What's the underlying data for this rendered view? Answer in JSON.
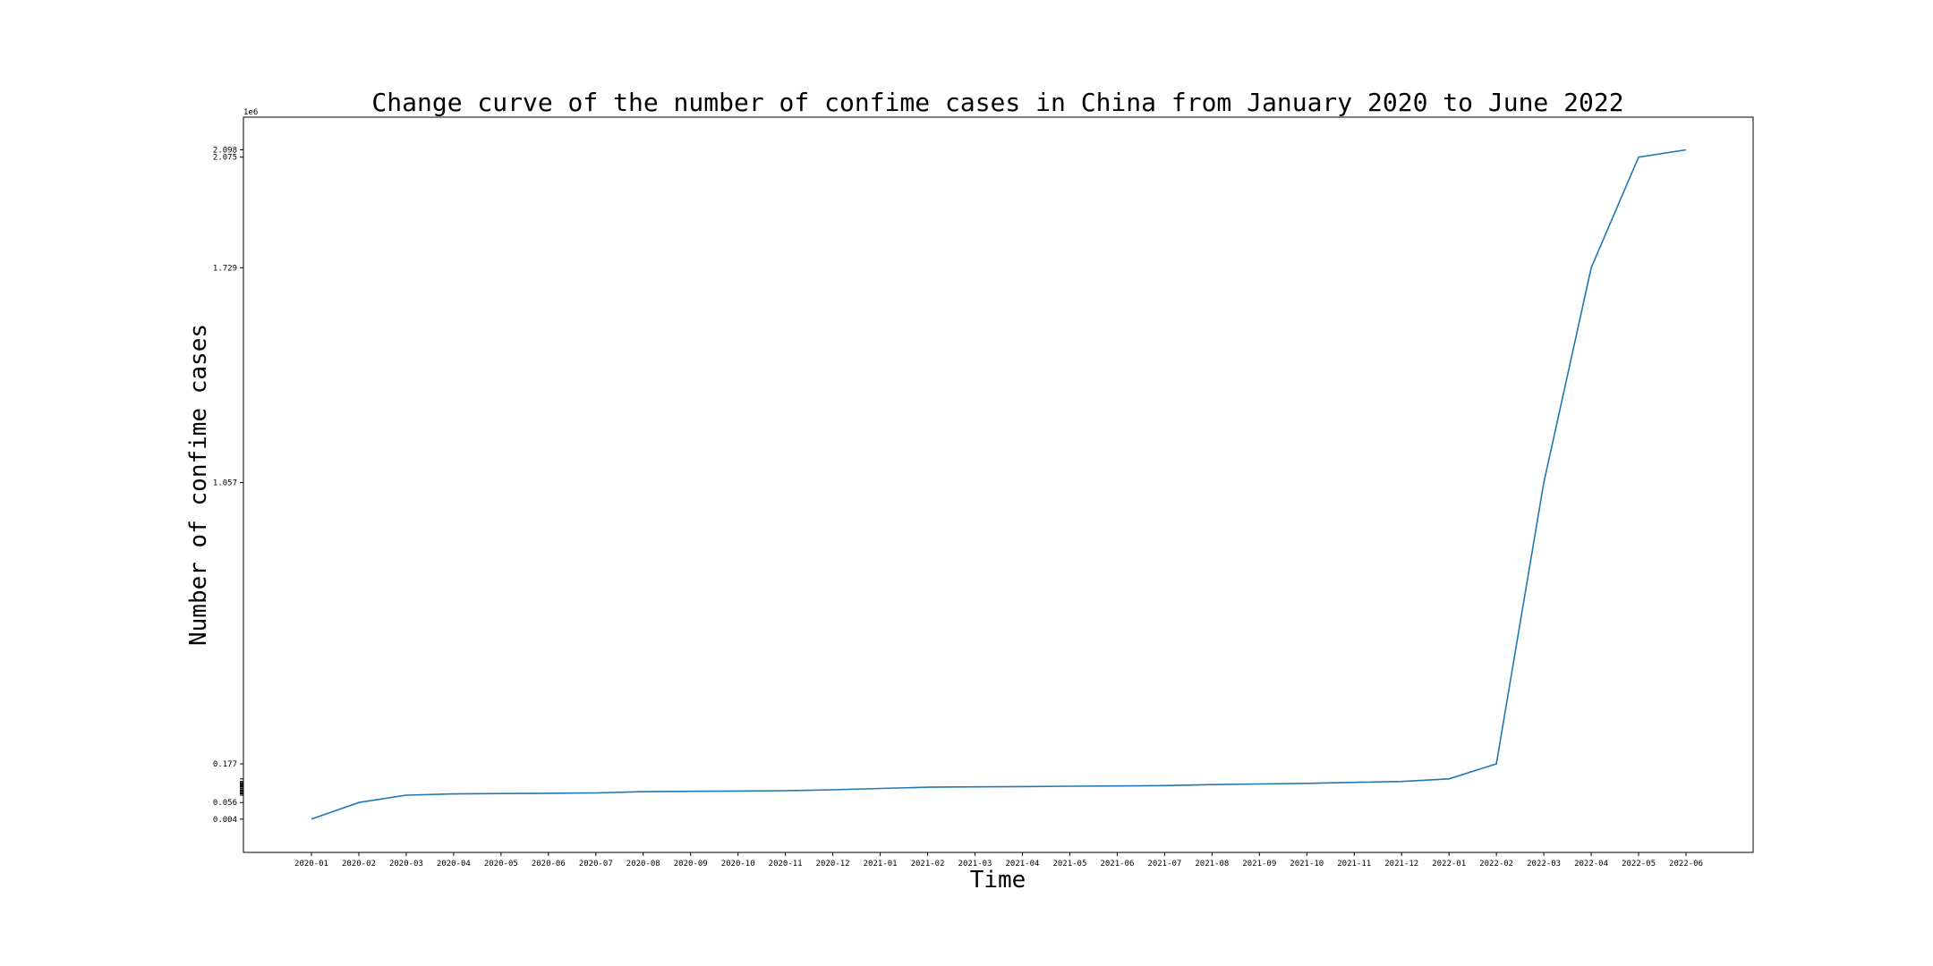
{
  "chart_data": {
    "type": "line",
    "title": "Change curve of the number of confime cases in China from January 2020 to June 2022",
    "xlabel": "Time",
    "ylabel": "Number of confime cases",
    "y_multiplier_label": "1e6",
    "grid": false,
    "legend": "none",
    "line_color": "#1f77b4",
    "categories": [
      "2020-01",
      "2020-02",
      "2020-03",
      "2020-04",
      "2020-05",
      "2020-06",
      "2020-07",
      "2020-08",
      "2020-09",
      "2020-10",
      "2020-11",
      "2020-12",
      "2021-01",
      "2021-02",
      "2021-03",
      "2021-04",
      "2021-05",
      "2021-06",
      "2021-07",
      "2021-08",
      "2021-09",
      "2021-10",
      "2021-11",
      "2021-12",
      "2022-01",
      "2022-02",
      "2022-03",
      "2022-04",
      "2022-05",
      "2022-06"
    ],
    "values": [
      0.004,
      0.056,
      0.079,
      0.083,
      0.084,
      0.085,
      0.086,
      0.09,
      0.091,
      0.092,
      0.093,
      0.096,
      0.1,
      0.104,
      0.105,
      0.106,
      0.107,
      0.108,
      0.109,
      0.112,
      0.114,
      0.116,
      0.119,
      0.122,
      0.13,
      0.177,
      1.057,
      1.729,
      2.075,
      2.098
    ],
    "ytick_labels": [
      "0.004",
      "0.056",
      "0.177",
      "1.057",
      "1.729",
      "2.075",
      "2.098"
    ],
    "ylim": [
      -0.1,
      2.2
    ]
  }
}
